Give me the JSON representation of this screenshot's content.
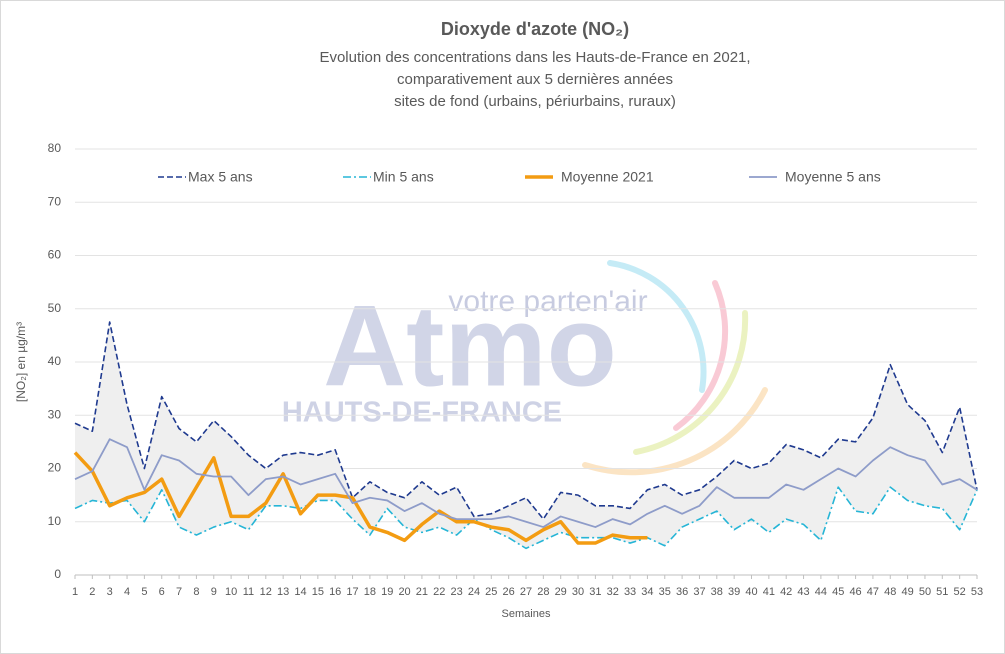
{
  "chart_data": {
    "type": "line",
    "title": "Dioxyde d'azote (NO₂)",
    "subtitle": [
      "Evolution des concentrations dans les Hauts-de-France  en 2021,",
      "comparativement aux 5 dernières années",
      "sites de fond (urbains, périurbains, ruraux)"
    ],
    "xlabel": "Semaines",
    "ylabel": "[NO₂] en µg/m³",
    "watermark": [
      "votre parten'air",
      "Atmo",
      "HAUTS-DE-FRANCE"
    ],
    "x": [
      1,
      2,
      3,
      4,
      5,
      6,
      7,
      8,
      9,
      10,
      11,
      12,
      13,
      14,
      15,
      16,
      17,
      18,
      19,
      20,
      21,
      22,
      23,
      24,
      25,
      26,
      27,
      28,
      29,
      30,
      31,
      32,
      33,
      34,
      35,
      36,
      37,
      38,
      39,
      40,
      41,
      42,
      43,
      44,
      45,
      46,
      47,
      48,
      49,
      50,
      51,
      52,
      53
    ],
    "ylim": [
      0,
      80
    ],
    "yticks": [
      0,
      10,
      20,
      30,
      40,
      50,
      60,
      70,
      80
    ],
    "grid": true,
    "band_fill": "#efefef",
    "series": [
      {
        "name": "Max 5 ans",
        "color": "#1f3a8f",
        "dash": "dashed",
        "values": [
          28.5,
          27,
          47.5,
          32,
          20,
          33.5,
          27.5,
          25,
          29,
          26,
          22.5,
          20,
          22.5,
          23,
          22.5,
          23.5,
          14.5,
          17.5,
          15.5,
          14.5,
          17.5,
          15,
          16.5,
          11,
          11.5,
          13,
          14.5,
          10.5,
          15.5,
          15,
          13,
          13,
          12.5,
          16,
          17,
          15,
          16,
          18.5,
          21.5,
          20,
          21,
          24.5,
          23.5,
          22,
          25.5,
          25,
          29.5,
          39.5,
          32,
          29,
          23,
          31.5,
          16
        ]
      },
      {
        "name": "Min 5 ans",
        "color": "#26b5d6",
        "dash": "dashdot",
        "values": [
          12.5,
          14,
          13.5,
          14,
          10,
          16,
          9,
          7.5,
          9,
          10,
          8.5,
          13,
          13,
          12.5,
          14,
          14,
          10.5,
          7.5,
          12.5,
          9,
          8,
          9,
          7.5,
          10.5,
          8.5,
          7,
          5,
          6.5,
          8,
          7,
          7,
          7,
          6,
          7,
          5.5,
          9,
          10.5,
          12,
          8.5,
          10.5,
          8,
          10.5,
          9.5,
          6.5,
          16.5,
          12,
          11.5,
          16.5,
          14,
          13,
          12.5,
          8.5,
          16
        ]
      },
      {
        "name": "Moyenne 2021",
        "color": "#f39c12",
        "dash": "solid",
        "width": 3.5,
        "values": [
          23,
          19.5,
          13,
          14.5,
          15.5,
          18,
          11,
          16.5,
          22,
          11,
          11,
          13.5,
          19,
          11.5,
          15,
          15,
          14.5,
          9,
          8,
          6.5,
          9.5,
          12,
          10,
          10,
          9,
          8.5,
          6.5,
          8.5,
          10,
          6,
          6,
          7.5,
          7,
          7,
          null,
          null,
          null,
          null,
          null,
          null,
          null,
          null,
          null,
          null,
          null,
          null,
          null,
          null,
          null,
          null,
          null,
          null,
          null
        ]
      },
      {
        "name": "Moyenne 5 ans",
        "color": "#8e9cc9",
        "dash": "solid",
        "width": 1.8,
        "values": [
          18,
          19.5,
          25.5,
          24,
          16,
          22.5,
          21.5,
          19,
          18.5,
          18.5,
          15,
          18,
          18.5,
          17,
          18,
          19,
          13.5,
          14.5,
          14,
          12,
          13.5,
          11.5,
          10.5,
          10.5,
          10.5,
          11,
          10,
          9,
          11,
          10,
          9,
          10.5,
          9.5,
          11.5,
          13,
          11.5,
          13,
          16.5,
          14.5,
          14.5,
          14.5,
          17,
          16,
          18,
          20,
          18.5,
          21.5,
          24,
          22.5,
          21.5,
          17,
          18,
          16
        ]
      }
    ]
  }
}
